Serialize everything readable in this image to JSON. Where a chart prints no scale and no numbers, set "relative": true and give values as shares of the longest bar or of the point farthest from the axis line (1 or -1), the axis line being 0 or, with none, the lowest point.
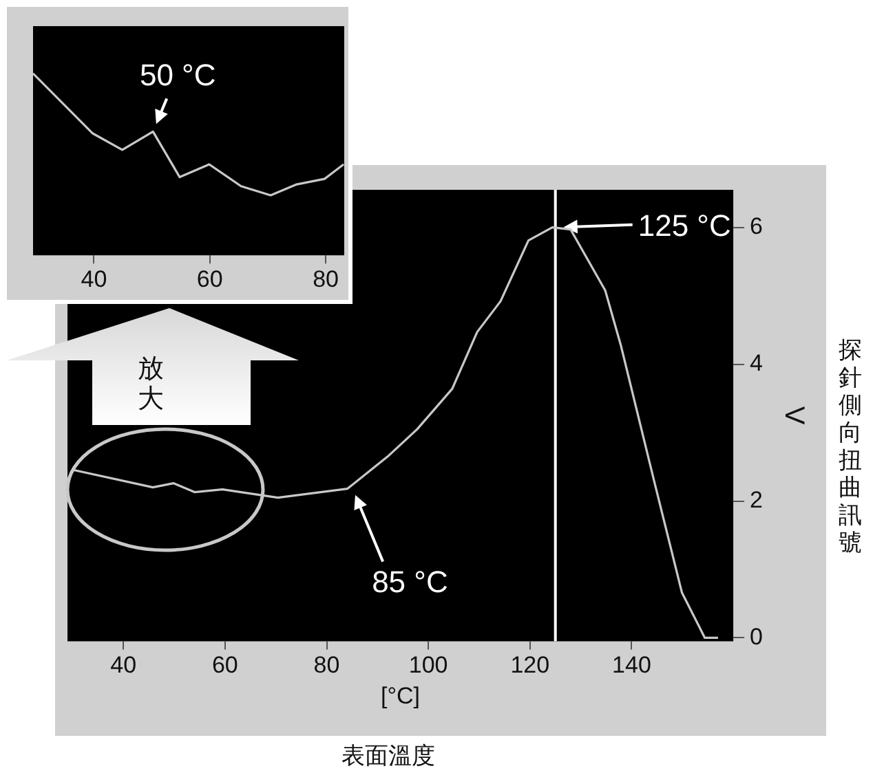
{
  "chart_data": [
    {
      "type": "line",
      "xlabel": "[°C]",
      "ylabel": "V",
      "xlim": [
        29,
        160
      ],
      "xticks": [
        40,
        60,
        80,
        100,
        120,
        140
      ],
      "ylim": [
        -0.05,
        6.55
      ],
      "yticks": [
        0,
        2,
        4,
        6
      ],
      "grid": false,
      "legend": false,
      "marker": "none",
      "x": [
        29.8,
        45.8,
        49.9,
        54,
        59.5,
        70.4,
        84.1,
        92,
        97.8,
        104.7,
        109.6,
        114.2,
        119.7,
        124.4,
        128,
        134.8,
        137.9,
        144.4,
        149.9,
        154.4,
        157
      ],
      "series": [
        {
          "color": "#c8c8c8",
          "values": [
            2.46,
            2.2,
            2.26,
            2.13,
            2.17,
            2.05,
            2.18,
            2.65,
            3.05,
            3.64,
            4.47,
            4.92,
            5.81,
            6.0,
            5.97,
            5.08,
            4.27,
            2.3,
            0.66,
            0,
            0
          ]
        }
      ],
      "ref_lines": [
        {
          "axis": "x",
          "value": 125,
          "color": "#ffffff"
        }
      ],
      "annotations": [
        "表面溫度",
        "探針側向扭曲訊號",
        "放大",
        {
          "text": "85 °C",
          "x": 85,
          "y": 2.2
        },
        {
          "text": "125 °C",
          "x": 125,
          "y": 6
        }
      ]
    },
    {
      "type": "line",
      "relative": true,
      "xlim": [
        29.5,
        83.2
      ],
      "xticks": [
        40,
        60,
        80
      ],
      "tick_labels": "x",
      "grid": false,
      "legend": false,
      "marker": "none",
      "x": [
        29.5,
        39.8,
        44.9,
        50.2,
        54.8,
        59.9,
        65.4,
        70.5,
        75,
        79.8,
        83.1
      ],
      "series": [
        {
          "color": "#c8c8c8",
          "values": [
            1,
            0.67,
            0.58,
            0.68,
            0.43,
            0.5,
            0.38,
            0.33,
            0.39,
            0.42,
            0.5
          ]
        }
      ],
      "annotations": [
        {
          "text": "50 °C",
          "x": 50.2,
          "y": 0.68
        }
      ]
    }
  ]
}
